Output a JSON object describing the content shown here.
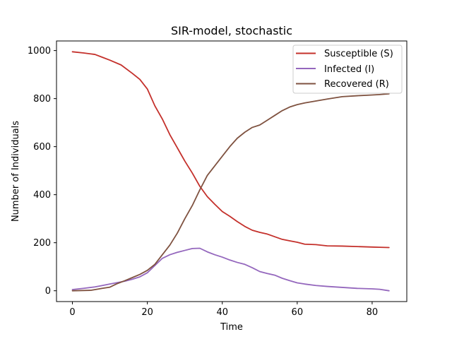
{
  "chart_data": {
    "type": "line",
    "title": "SIR-model, stochastic",
    "xlabel": "Time",
    "ylabel": "Number of Individuals",
    "xlim": [
      -4.25,
      89.25
    ],
    "ylim": [
      -45,
      1040
    ],
    "xticks": [
      0,
      20,
      40,
      60,
      80
    ],
    "yticks": [
      0,
      200,
      400,
      600,
      800,
      1000
    ],
    "grid": false,
    "legend": "top-right",
    "series": [
      {
        "name": "Susceptible (S)",
        "color": "#c4302b",
        "points": [
          [
            0,
            995
          ],
          [
            3,
            990
          ],
          [
            6,
            984
          ],
          [
            8,
            972
          ],
          [
            10,
            960
          ],
          [
            13,
            940
          ],
          [
            16,
            905
          ],
          [
            18,
            880
          ],
          [
            20,
            840
          ],
          [
            22,
            770
          ],
          [
            24,
            715
          ],
          [
            26,
            650
          ],
          [
            28,
            595
          ],
          [
            30,
            540
          ],
          [
            32,
            490
          ],
          [
            34,
            435
          ],
          [
            36,
            392
          ],
          [
            38,
            360
          ],
          [
            40,
            330
          ],
          [
            42,
            310
          ],
          [
            44,
            288
          ],
          [
            46,
            268
          ],
          [
            48,
            252
          ],
          [
            50,
            243
          ],
          [
            52,
            236
          ],
          [
            54,
            225
          ],
          [
            56,
            214
          ],
          [
            58,
            208
          ],
          [
            60,
            202
          ],
          [
            62,
            194
          ],
          [
            65,
            192
          ],
          [
            68,
            187
          ],
          [
            72,
            186
          ],
          [
            76,
            184
          ],
          [
            80,
            182
          ],
          [
            82,
            181
          ],
          [
            84.5,
            180
          ]
        ]
      },
      {
        "name": "Infected (I)",
        "color": "#9467bd",
        "points": [
          [
            0,
            5
          ],
          [
            3,
            10
          ],
          [
            6,
            16
          ],
          [
            8,
            22
          ],
          [
            10,
            28
          ],
          [
            12,
            34
          ],
          [
            14,
            40
          ],
          [
            16,
            48
          ],
          [
            18,
            58
          ],
          [
            20,
            75
          ],
          [
            22,
            105
          ],
          [
            24,
            135
          ],
          [
            26,
            150
          ],
          [
            28,
            160
          ],
          [
            30,
            168
          ],
          [
            32,
            176
          ],
          [
            34,
            177
          ],
          [
            36,
            162
          ],
          [
            38,
            150
          ],
          [
            40,
            140
          ],
          [
            42,
            128
          ],
          [
            44,
            118
          ],
          [
            46,
            110
          ],
          [
            48,
            96
          ],
          [
            50,
            80
          ],
          [
            52,
            72
          ],
          [
            54,
            65
          ],
          [
            56,
            52
          ],
          [
            58,
            42
          ],
          [
            60,
            33
          ],
          [
            62,
            28
          ],
          [
            65,
            22
          ],
          [
            68,
            18
          ],
          [
            72,
            14
          ],
          [
            76,
            10
          ],
          [
            80,
            8
          ],
          [
            82,
            6
          ],
          [
            84.5,
            0
          ]
        ]
      },
      {
        "name": "Recovered (R)",
        "color": "#7f5240",
        "points": [
          [
            0,
            0
          ],
          [
            5,
            2
          ],
          [
            8,
            10
          ],
          [
            10,
            15
          ],
          [
            12,
            30
          ],
          [
            14,
            42
          ],
          [
            16,
            55
          ],
          [
            18,
            68
          ],
          [
            20,
            85
          ],
          [
            22,
            110
          ],
          [
            24,
            150
          ],
          [
            26,
            190
          ],
          [
            28,
            240
          ],
          [
            30,
            300
          ],
          [
            32,
            355
          ],
          [
            34,
            420
          ],
          [
            36,
            480
          ],
          [
            38,
            520
          ],
          [
            40,
            560
          ],
          [
            42,
            600
          ],
          [
            44,
            635
          ],
          [
            46,
            660
          ],
          [
            48,
            680
          ],
          [
            50,
            690
          ],
          [
            52,
            710
          ],
          [
            54,
            730
          ],
          [
            56,
            750
          ],
          [
            58,
            765
          ],
          [
            60,
            775
          ],
          [
            62,
            782
          ],
          [
            65,
            790
          ],
          [
            68,
            798
          ],
          [
            72,
            808
          ],
          [
            76,
            812
          ],
          [
            80,
            815
          ],
          [
            82,
            817
          ],
          [
            84.5,
            820
          ]
        ]
      }
    ]
  }
}
